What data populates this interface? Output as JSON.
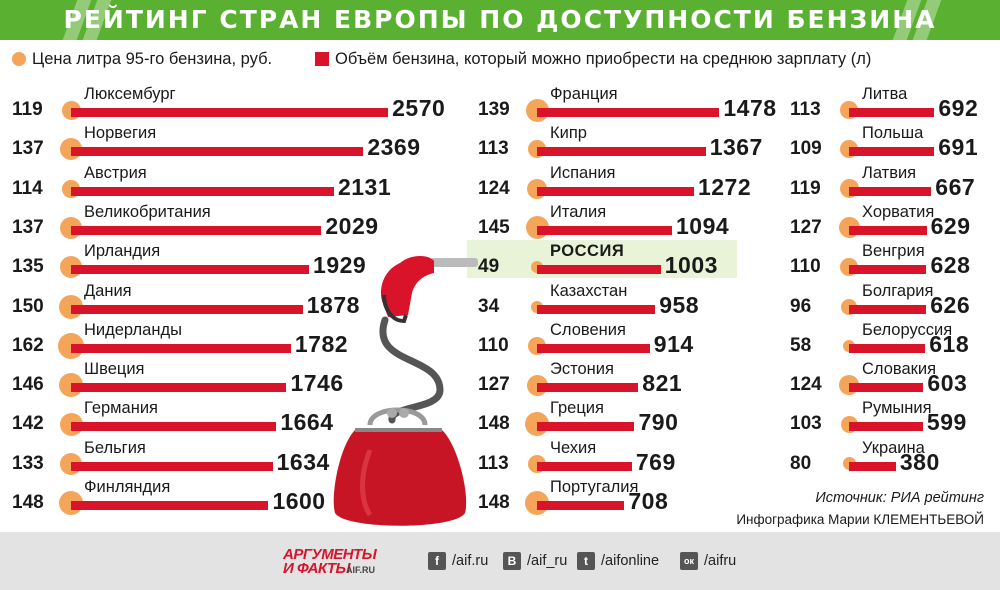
{
  "title": "РЕЙТИНГ СТРАН ЕВРОПЫ ПО ДОСТУПНОСТИ БЕНЗИНА",
  "legend": {
    "price": "Цена литра 95-го бензина, руб.",
    "volume": "Объём бензина, который можно приобрести на среднюю зарплату (л)"
  },
  "colors": {
    "bar": "#d9132a",
    "dot": "#f5a55a",
    "band": "#5ab031",
    "highlight": "#e9f3d8"
  },
  "chart_data": {
    "type": "bar",
    "series": [
      {
        "name": "Цена литра 95-го бензина, руб.",
        "key": "price"
      },
      {
        "name": "Объём бензина, который можно приобрести на среднюю зарплату (л)",
        "key": "volume"
      }
    ],
    "columns": [
      [
        {
          "country": "Люксембург",
          "price": 119,
          "volume": 2570
        },
        {
          "country": "Норвегия",
          "price": 137,
          "volume": 2369
        },
        {
          "country": "Австрия",
          "price": 114,
          "volume": 2131
        },
        {
          "country": "Великобритания",
          "price": 137,
          "volume": 2029
        },
        {
          "country": "Ирландия",
          "price": 135,
          "volume": 1929
        },
        {
          "country": "Дания",
          "price": 150,
          "volume": 1878
        },
        {
          "country": "Нидерланды",
          "price": 162,
          "volume": 1782
        },
        {
          "country": "Швеция",
          "price": 146,
          "volume": 1746
        },
        {
          "country": "Германия",
          "price": 142,
          "volume": 1664
        },
        {
          "country": "Бельгия",
          "price": 133,
          "volume": 1634
        },
        {
          "country": "Финляндия",
          "price": 148,
          "volume": 1600
        }
      ],
      [
        {
          "country": "Франция",
          "price": 139,
          "volume": 1478
        },
        {
          "country": "Кипр",
          "price": 113,
          "volume": 1367
        },
        {
          "country": "Испания",
          "price": 124,
          "volume": 1272
        },
        {
          "country": "Италия",
          "price": 145,
          "volume": 1094
        },
        {
          "country": "РОССИЯ",
          "price": 49,
          "volume": 1003,
          "highlight": true
        },
        {
          "country": "Казахстан",
          "price": 34,
          "volume": 958
        },
        {
          "country": "Словения",
          "price": 110,
          "volume": 914
        },
        {
          "country": "Эстония",
          "price": 127,
          "volume": 821
        },
        {
          "country": "Греция",
          "price": 148,
          "volume": 790
        },
        {
          "country": "Чехия",
          "price": 113,
          "volume": 769
        },
        {
          "country": "Португалия",
          "price": 148,
          "volume": 708
        }
      ],
      [
        {
          "country": "Литва",
          "price": 113,
          "volume": 692
        },
        {
          "country": "Польша",
          "price": 109,
          "volume": 691
        },
        {
          "country": "Латвия",
          "price": 119,
          "volume": 667
        },
        {
          "country": "Хорватия",
          "price": 127,
          "volume": 629
        },
        {
          "country": "Венгрия",
          "price": 110,
          "volume": 628
        },
        {
          "country": "Болгария",
          "price": 96,
          "volume": 626
        },
        {
          "country": "Белоруссия",
          "price": 58,
          "volume": 618
        },
        {
          "country": "Словакия",
          "price": 124,
          "volume": 603
        },
        {
          "country": "Румыния",
          "price": 103,
          "volume": 599
        },
        {
          "country": "Украина",
          "price": 80,
          "volume": 380
        }
      ]
    ]
  },
  "source": "Источник: РИА рейтинг",
  "credit": "Инфографика Марии КЛЕМЕНТЬЕВОЙ",
  "footer": {
    "logo_top": "АРГУМЕНТЫ",
    "logo_bottom": "И ФАКТЫ",
    "logo_site": "AIF.RU",
    "social": [
      {
        "icon": "facebook-icon",
        "glyph": "f",
        "text": "/aif.ru"
      },
      {
        "icon": "vk-icon",
        "glyph": "В",
        "text": "/aif_ru"
      },
      {
        "icon": "twitter-icon",
        "glyph": "t",
        "text": "/aifonline"
      },
      {
        "icon": "odnoklassniki-icon",
        "glyph": "ок",
        "text": "/aifru"
      }
    ]
  }
}
